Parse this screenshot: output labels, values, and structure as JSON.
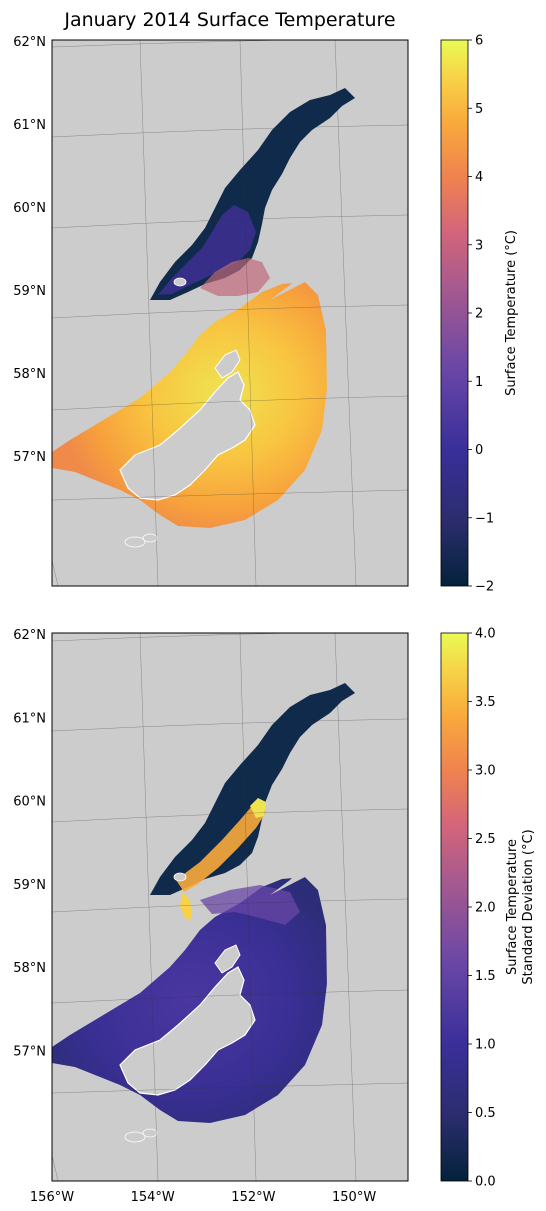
{
  "title": "January 2014 Surface Temperature",
  "chart_data": [
    {
      "type": "heatmap",
      "title": "January 2014 Surface Temperature",
      "variable": "Surface Temperature",
      "colorbar_label": [
        "Surface Temperature (°C)"
      ],
      "colormap": [
        "#03223a",
        "#2b2d6e",
        "#3a2f9a",
        "#6a47a6",
        "#a85a8e",
        "#d4657a",
        "#f0834e",
        "#f9aa3c",
        "#f7d247",
        "#e9fb53"
      ],
      "vmin": -2,
      "vmax": 6,
      "colorbar_ticks": [
        -2,
        -1,
        0,
        1,
        2,
        3,
        4,
        5,
        6
      ],
      "colorbar_tick_labels": [
        "−2",
        "−1",
        "0",
        "1",
        "2",
        "3",
        "4",
        "5",
        "6"
      ],
      "lat_ticks": [
        "62°N",
        "61°N",
        "60°N",
        "59°N",
        "58°N",
        "57°N"
      ],
      "lat_range": [
        56,
        62
      ],
      "lon_range": [
        -156,
        -149
      ]
    },
    {
      "type": "heatmap",
      "variable": "Surface Temperature Standard Deviation",
      "colorbar_label": [
        "Surface Temperature",
        "Standard Deviation (°C)"
      ],
      "colormap": [
        "#03223a",
        "#2b2d6e",
        "#3a2f9a",
        "#6a47a6",
        "#a85a8e",
        "#d4657a",
        "#f0834e",
        "#f9aa3c",
        "#f7d247",
        "#e9fb53"
      ],
      "vmin": 0,
      "vmax": 4,
      "colorbar_ticks": [
        0,
        0.5,
        1,
        1.5,
        2,
        2.5,
        3,
        3.5,
        4
      ],
      "colorbar_tick_labels": [
        "0.0",
        "0.5",
        "1.0",
        "1.5",
        "2.0",
        "2.5",
        "3.0",
        "3.5",
        "4.0"
      ],
      "lat_ticks": [
        "62°N",
        "61°N",
        "60°N",
        "59°N",
        "58°N",
        "57°N"
      ],
      "lon_ticks": [
        "156°W",
        "154°W",
        "152°W",
        "150°W"
      ],
      "lat_range": [
        56,
        62
      ],
      "lon_range": [
        -156,
        -149
      ]
    }
  ]
}
